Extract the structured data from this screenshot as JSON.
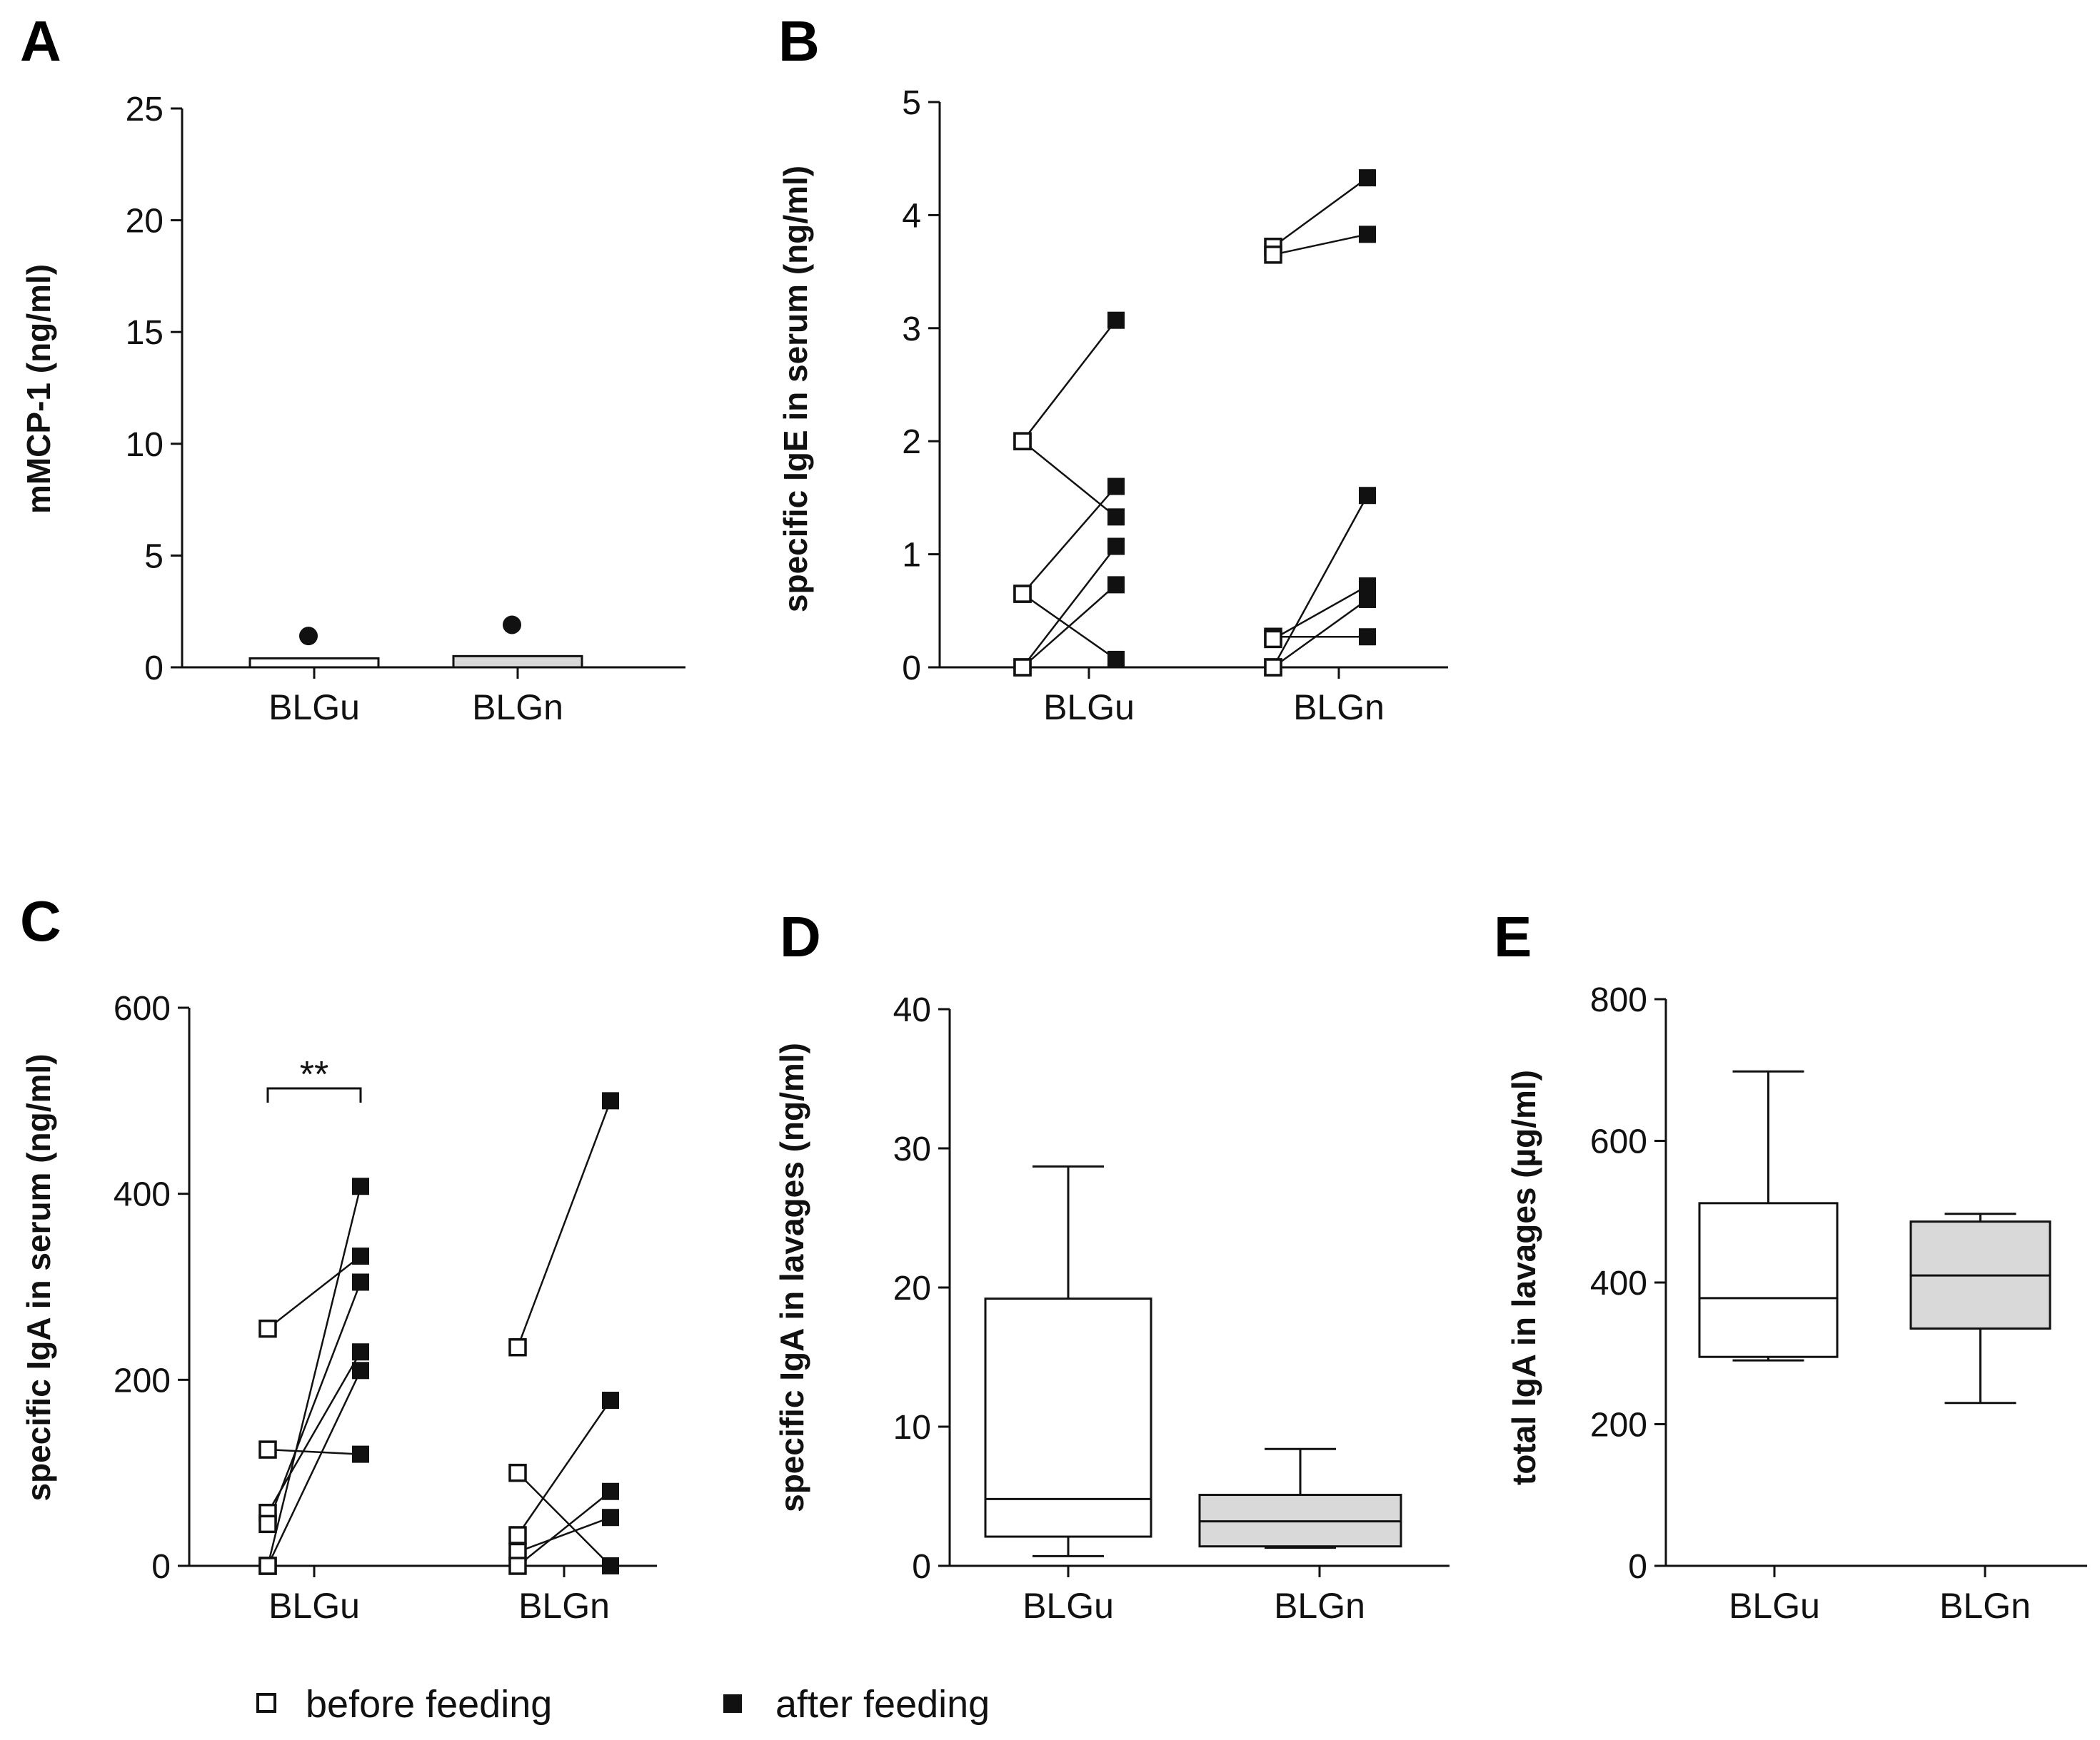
{
  "legend": {
    "before_label": "before feeding",
    "after_label": "after feeding",
    "before_fill": "#ffffff",
    "after_fill": "#111111"
  },
  "colors": {
    "ink": "#111111",
    "box_gray": "#d9d9d9",
    "white": "#ffffff"
  },
  "chart_data": [
    {
      "panel": "A",
      "type": "bar",
      "ylabel": "mMCP-1 (ng/ml)",
      "ylim": [
        0,
        25
      ],
      "yticks": [
        0,
        5,
        10,
        15,
        20,
        25
      ],
      "yticklabels": [
        "0",
        "5",
        "10",
        "15",
        "20",
        "25"
      ],
      "categories": [
        "BLGu",
        "BLGn"
      ],
      "values": [
        0.4,
        0.5
      ],
      "bar_fills": [
        "#ffffff",
        "#d9d9d9"
      ],
      "outliers": [
        1.4,
        1.9
      ]
    },
    {
      "panel": "B",
      "type": "scatter",
      "subtype": "paired",
      "ylabel": "specific IgE in serum (ng/ml)",
      "ylim": [
        0,
        5
      ],
      "yticks": [
        0,
        1,
        2,
        3,
        4,
        5
      ],
      "yticklabels": [
        "0",
        "1",
        "2",
        "3",
        "4",
        "5"
      ],
      "categories": [
        "BLGu",
        "BLGn"
      ],
      "groups": [
        {
          "category": "BLGu",
          "pairs": [
            [
              2.0,
              3.07
            ],
            [
              2.0,
              1.33
            ],
            [
              0.65,
              1.6
            ],
            [
              0.65,
              0.07
            ],
            [
              0.0,
              1.07
            ],
            [
              0.0,
              0.73
            ]
          ]
        },
        {
          "category": "BLGn",
          "pairs": [
            [
              3.72,
              4.33
            ],
            [
              3.65,
              3.83
            ],
            [
              0.27,
              0.27
            ],
            [
              0.25,
              0.72
            ],
            [
              0.0,
              1.52
            ],
            [
              0.0,
              0.6
            ]
          ]
        }
      ]
    },
    {
      "panel": "C",
      "type": "scatter",
      "subtype": "paired",
      "ylabel": "specific IgA in serum (ng/ml)",
      "ylim": [
        0,
        600
      ],
      "yticks": [
        0,
        200,
        400,
        600
      ],
      "yticklabels": [
        "0",
        "200",
        "400",
        "600"
      ],
      "categories": [
        "BLGu",
        "BLGn"
      ],
      "significance": "**",
      "groups": [
        {
          "category": "BLGu",
          "pairs": [
            [
              255,
              333
            ],
            [
              125,
              120
            ],
            [
              57,
              230
            ],
            [
              45,
              305
            ],
            [
              0,
              408
            ],
            [
              0,
              210
            ]
          ]
        },
        {
          "category": "BLGn",
          "pairs": [
            [
              235,
              500
            ],
            [
              100,
              0
            ],
            [
              33,
              178
            ],
            [
              15,
              52
            ],
            [
              0,
              80
            ]
          ]
        }
      ]
    },
    {
      "panel": "D",
      "type": "box",
      "ylabel": "specific IgA in lavages (ng/ml)",
      "ylim": [
        0,
        40
      ],
      "yticks": [
        0,
        10,
        20,
        30,
        40
      ],
      "yticklabels": [
        "0",
        "10",
        "20",
        "30",
        "40"
      ],
      "categories": [
        "BLGu",
        "BLGn"
      ],
      "boxes": [
        {
          "min": 0.7,
          "q1": 2.1,
          "median": 4.8,
          "q3": 19.2,
          "max": 28.7,
          "fill": "#ffffff"
        },
        {
          "min": 1.3,
          "q1": 1.4,
          "median": 3.2,
          "q3": 5.1,
          "max": 8.4,
          "fill": "#d9d9d9"
        }
      ]
    },
    {
      "panel": "E",
      "type": "box",
      "ylabel": "total IgA in lavages (µg/ml)",
      "ylim": [
        0,
        800
      ],
      "yticks": [
        0,
        200,
        400,
        600,
        800
      ],
      "yticklabels": [
        "0",
        "200",
        "400",
        "600",
        "800"
      ],
      "categories": [
        "BLGu",
        "BLGn"
      ],
      "boxes": [
        {
          "min": 290,
          "q1": 295,
          "median": 378,
          "q3": 512,
          "max": 698,
          "fill": "#ffffff"
        },
        {
          "min": 230,
          "q1": 335,
          "median": 410,
          "q3": 486,
          "max": 497,
          "fill": "#d9d9d9"
        }
      ]
    }
  ]
}
